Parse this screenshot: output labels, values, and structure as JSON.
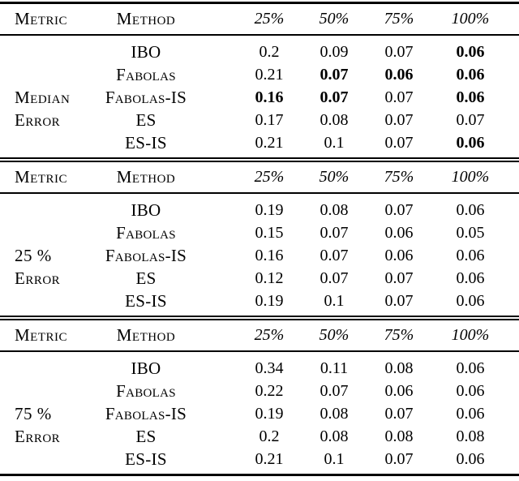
{
  "table": {
    "header": {
      "metric": "Metric",
      "method": "Method",
      "budgets": [
        "25%",
        "50%",
        "75%",
        "100%"
      ]
    },
    "sections": [
      {
        "metric": [
          "Median",
          "Error"
        ],
        "rows": [
          {
            "method": "IBO",
            "values": [
              "0.2",
              "0.09",
              "0.07",
              "0.06"
            ],
            "bold": [
              false,
              false,
              false,
              true
            ]
          },
          {
            "method": "Fabolas",
            "values": [
              "0.21",
              "0.07",
              "0.06",
              "0.06"
            ],
            "bold": [
              false,
              true,
              true,
              true
            ]
          },
          {
            "method": "Fabolas-IS",
            "values": [
              "0.16",
              "0.07",
              "0.07",
              "0.06"
            ],
            "bold": [
              true,
              true,
              false,
              true
            ]
          },
          {
            "method": "ES",
            "values": [
              "0.17",
              "0.08",
              "0.07",
              "0.07"
            ],
            "bold": [
              false,
              false,
              false,
              false
            ]
          },
          {
            "method": "ES-IS",
            "values": [
              "0.21",
              "0.1",
              "0.07",
              "0.06"
            ],
            "bold": [
              false,
              false,
              false,
              true
            ]
          }
        ]
      },
      {
        "metric": [
          "25 %",
          "Error"
        ],
        "rows": [
          {
            "method": "IBO",
            "values": [
              "0.19",
              "0.08",
              "0.07",
              "0.06"
            ],
            "bold": [
              false,
              false,
              false,
              false
            ]
          },
          {
            "method": "Fabolas",
            "values": [
              "0.15",
              "0.07",
              "0.06",
              "0.05"
            ],
            "bold": [
              false,
              false,
              false,
              false
            ]
          },
          {
            "method": "Fabolas-IS",
            "values": [
              "0.16",
              "0.07",
              "0.06",
              "0.06"
            ],
            "bold": [
              false,
              false,
              false,
              false
            ]
          },
          {
            "method": "ES",
            "values": [
              "0.12",
              "0.07",
              "0.07",
              "0.06"
            ],
            "bold": [
              false,
              false,
              false,
              false
            ]
          },
          {
            "method": "ES-IS",
            "values": [
              "0.19",
              "0.1",
              "0.07",
              "0.06"
            ],
            "bold": [
              false,
              false,
              false,
              false
            ]
          }
        ]
      },
      {
        "metric": [
          "75 %",
          "Error"
        ],
        "rows": [
          {
            "method": "IBO",
            "values": [
              "0.34",
              "0.11",
              "0.08",
              "0.06"
            ],
            "bold": [
              false,
              false,
              false,
              false
            ]
          },
          {
            "method": "Fabolas",
            "values": [
              "0.22",
              "0.07",
              "0.06",
              "0.06"
            ],
            "bold": [
              false,
              false,
              false,
              false
            ]
          },
          {
            "method": "Fabolas-IS",
            "values": [
              "0.19",
              "0.08",
              "0.07",
              "0.06"
            ],
            "bold": [
              false,
              false,
              false,
              false
            ]
          },
          {
            "method": "ES",
            "values": [
              "0.2",
              "0.08",
              "0.08",
              "0.08"
            ],
            "bold": [
              false,
              false,
              false,
              false
            ]
          },
          {
            "method": "ES-IS",
            "values": [
              "0.21",
              "0.1",
              "0.07",
              "0.06"
            ],
            "bold": [
              false,
              false,
              false,
              false
            ]
          }
        ]
      }
    ]
  }
}
